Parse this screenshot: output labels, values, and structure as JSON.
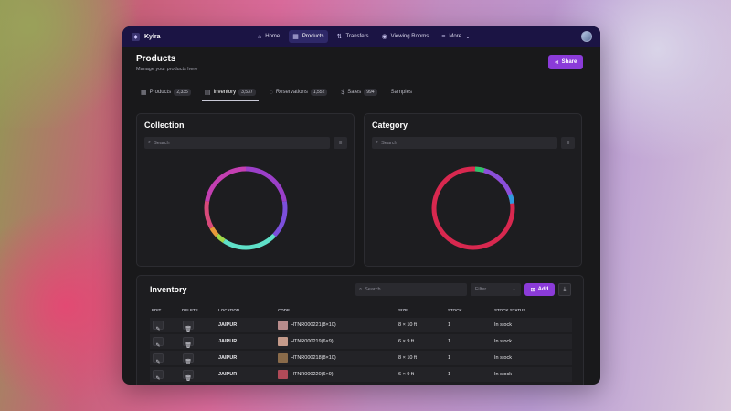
{
  "app": {
    "brand": "Kylra",
    "nav": [
      {
        "label": "Home",
        "icon": "home-icon"
      },
      {
        "label": "Products",
        "icon": "grid-icon"
      },
      {
        "label": "Transfers",
        "icon": "transfer-icon"
      },
      {
        "label": "Viewing Rooms",
        "icon": "eye-icon"
      },
      {
        "label": "More",
        "icon": "menu-icon"
      }
    ]
  },
  "header": {
    "title": "Products",
    "subtitle": "Manage your products here",
    "share_label": "Share"
  },
  "tabs": [
    {
      "label": "Products",
      "count": "2,335"
    },
    {
      "label": "Inventory",
      "count": "3,537"
    },
    {
      "label": "Reservations",
      "count": "1,552"
    },
    {
      "label": "Sales",
      "count": "994"
    },
    {
      "label": "Samples",
      "count": ""
    }
  ],
  "collection_panel": {
    "title": "Collection",
    "search_placeholder": "Search"
  },
  "category_panel": {
    "title": "Category",
    "search_placeholder": "Search"
  },
  "inventory": {
    "title": "Inventory",
    "search_placeholder": "Search",
    "filter_label": "Filter",
    "add_label": "Add",
    "columns": [
      "EDIT",
      "DELETE",
      "LOCATION",
      "CODE",
      "SIZE",
      "STOCK",
      "STOCK STATUS"
    ],
    "rows": [
      {
        "location": "JAIPUR",
        "code": "HTNR000221(8×10)",
        "size": "8 × 10 ft",
        "stock": "1",
        "status": "In stock",
        "thumb_color": "#b88c8c"
      },
      {
        "location": "JAIPUR",
        "code": "HTNR000219(6×9)",
        "size": "6 × 9 ft",
        "stock": "1",
        "status": "In stock",
        "thumb_color": "#c49a8a"
      },
      {
        "location": "JAIPUR",
        "code": "HTNR000218(8×10)",
        "size": "8 × 10 ft",
        "stock": "1",
        "status": "In stock",
        "thumb_color": "#8a6b4a"
      },
      {
        "location": "JAIPUR",
        "code": "HTNR000220(6×9)",
        "size": "6 × 9 ft",
        "stock": "1",
        "status": "In stock",
        "thumb_color": "#b04a58"
      }
    ]
  },
  "colors": {
    "accent": "#8b3bd9",
    "nav_bg": "#1b1444",
    "app_bg": "#19191b"
  }
}
